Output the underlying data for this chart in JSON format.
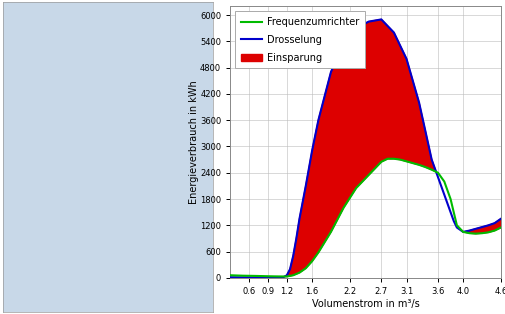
{
  "xlabel": "Volumenstrom in m³/s",
  "ylabel": "Energieverbrauch in kWh",
  "xlim": [
    0.3,
    4.6
  ],
  "ylim": [
    0,
    6200
  ],
  "xticks": [
    0.6,
    0.9,
    1.2,
    1.6,
    2.2,
    2.7,
    3.1,
    3.6,
    4.0,
    4.6
  ],
  "yticks": [
    0,
    600,
    1200,
    1800,
    2400,
    3000,
    3600,
    4200,
    4800,
    5400,
    6000
  ],
  "plot_bg_color": "#ffffff",
  "grid_color": "#bbbbbb",
  "freq_color": "#00bb00",
  "dross_color": "#0000cc",
  "einspar_color": "#dd0000",
  "legend_labels": [
    "Frequenzumrichter",
    "Drosselung",
    "Einsparung"
  ],
  "left_panel_color": "#c8d8e8",
  "fig_bg_color": "#ffffff",
  "x_freq": [
    0.3,
    0.5,
    0.7,
    0.9,
    1.0,
    1.1,
    1.2,
    1.3,
    1.4,
    1.5,
    1.6,
    1.7,
    1.9,
    2.1,
    2.3,
    2.5,
    2.7,
    2.8,
    2.9,
    3.0,
    3.1,
    3.2,
    3.3,
    3.4,
    3.5,
    3.6,
    3.7,
    3.8,
    3.85,
    3.9,
    4.0,
    4.1,
    4.2,
    4.3,
    4.4,
    4.5,
    4.6
  ],
  "y_freq": [
    60,
    50,
    45,
    38,
    35,
    33,
    32,
    60,
    120,
    220,
    380,
    580,
    1050,
    1600,
    2050,
    2350,
    2650,
    2720,
    2720,
    2700,
    2660,
    2620,
    2580,
    2530,
    2470,
    2400,
    2200,
    1800,
    1500,
    1200,
    1050,
    1020,
    1010,
    1020,
    1040,
    1080,
    1150
  ],
  "x_dross": [
    0.3,
    0.5,
    0.7,
    0.9,
    1.0,
    1.1,
    1.15,
    1.2,
    1.25,
    1.3,
    1.35,
    1.4,
    1.5,
    1.6,
    1.7,
    1.9,
    2.1,
    2.3,
    2.5,
    2.7,
    2.9,
    3.1,
    3.3,
    3.5,
    3.6,
    3.7,
    3.75,
    3.8,
    3.85,
    3.9,
    4.0,
    4.1,
    4.2,
    4.3,
    4.4,
    4.5,
    4.6
  ],
  "y_dross": [
    15,
    12,
    10,
    8,
    8,
    10,
    20,
    60,
    200,
    500,
    900,
    1350,
    2100,
    2900,
    3600,
    4700,
    5350,
    5700,
    5850,
    5900,
    5600,
    5000,
    4000,
    2700,
    2300,
    1900,
    1700,
    1500,
    1300,
    1150,
    1050,
    1080,
    1120,
    1160,
    1200,
    1250,
    1350
  ]
}
